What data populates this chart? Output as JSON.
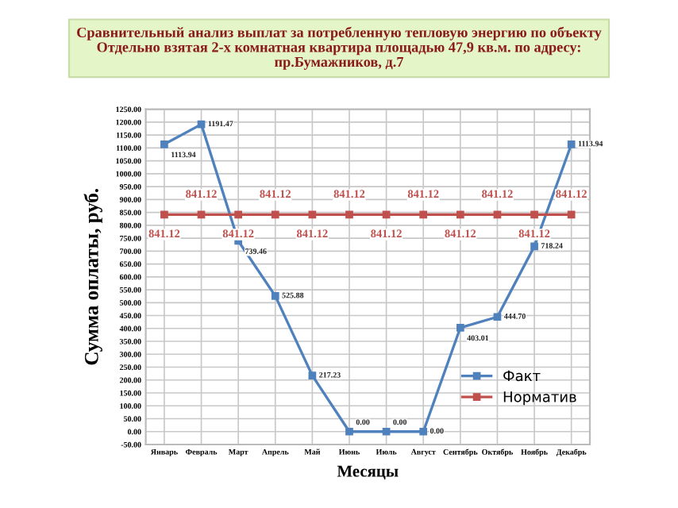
{
  "chart_data": {
    "type": "line",
    "title": "Сравнительный анализ выплат за потребленную тепловую энергию по объекту\nОтдельно взятая 2-х комнатная квартира площадью 47,9 кв.м. по адресу:\nпр.Бумажников, д.7",
    "xlabel": "Месяцы",
    "ylabel": "Сумма оплаты, руб.",
    "categories": [
      "Январь",
      "Февраль",
      "Март",
      "Апрель",
      "Май",
      "Июнь",
      "Июль",
      "Август",
      "Сентябрь",
      "Октябрь",
      "Ноябрь",
      "Декабрь"
    ],
    "series": [
      {
        "name": "Факт",
        "color": "#4f81bd",
        "values": [
          1113.94,
          1191.47,
          739.46,
          525.88,
          217.23,
          0,
          0,
          0,
          403.01,
          444.7,
          718.24,
          1113.94
        ],
        "value_labels": [
          "1113.94",
          "1191.47",
          "739.46",
          "525.88",
          "217.23",
          "0.00",
          "0.00",
          "0.00",
          "403.01",
          "444.70",
          "718.24",
          "1113.94"
        ]
      },
      {
        "name": "Норматив",
        "color": "#c0504d",
        "values": [
          841.12,
          841.12,
          841.12,
          841.12,
          841.12,
          841.12,
          841.12,
          841.12,
          841.12,
          841.12,
          841.12,
          841.12
        ],
        "value_labels": [
          "841.12",
          "841.12",
          "841.12",
          "841.12",
          "841.12",
          "841.12",
          "841.12",
          "841.12",
          "841.12",
          "841.12",
          "841.12",
          "841.12"
        ]
      }
    ],
    "ylim": [
      -50,
      1250
    ],
    "yticks": [
      {
        "value": -50,
        "label": "-50.00"
      },
      {
        "value": 0,
        "label": "0.00"
      },
      {
        "value": 50,
        "label": "50.00"
      },
      {
        "value": 100,
        "label": "100.00"
      },
      {
        "value": 150,
        "label": "150.00"
      },
      {
        "value": 200,
        "label": "200.00"
      },
      {
        "value": 250,
        "label": "250.00"
      },
      {
        "value": 300,
        "label": "300.00"
      },
      {
        "value": 350,
        "label": "350.00"
      },
      {
        "value": 400,
        "label": "400.00"
      },
      {
        "value": 450,
        "label": "450.00"
      },
      {
        "value": 500,
        "label": "500.00"
      },
      {
        "value": 550,
        "label": "550.00"
      },
      {
        "value": 600,
        "label": "600.00"
      },
      {
        "value": 650,
        "label": "650.00"
      },
      {
        "value": 700,
        "label": "700.00"
      },
      {
        "value": 750,
        "label": "750.00"
      },
      {
        "value": 800,
        "label": "800.00"
      },
      {
        "value": 850,
        "label": "850.00"
      },
      {
        "value": 900,
        "label": "900.00"
      },
      {
        "value": 950,
        "label": "950.00"
      },
      {
        "value": 1000,
        "label": "1000.00"
      },
      {
        "value": 1050,
        "label": "1050.00"
      },
      {
        "value": 1100,
        "label": "1100.00"
      },
      {
        "value": 1150,
        "label": "1150.00"
      },
      {
        "value": 1200,
        "label": "1200.00"
      },
      {
        "value": 1250,
        "label": "1250.00"
      }
    ],
    "grid": true,
    "legend": "right",
    "marker": "square",
    "line_style": "solid"
  }
}
